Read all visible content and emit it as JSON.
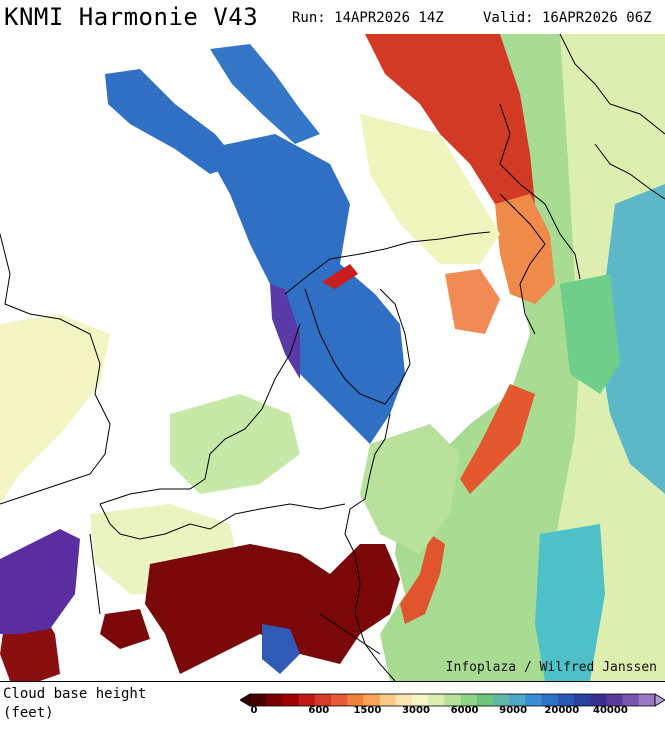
{
  "header": {
    "title": "KNMI Harmonie V43",
    "run": "Run: 14APR2026 14Z",
    "valid": "Valid: 16APR2026 06Z"
  },
  "map": {
    "credit": "Infoplaza / Wilfred Janssen"
  },
  "legend": {
    "param_line1": "Cloud base height",
    "param_line2": "(feet)",
    "colors": [
      "#4a0000",
      "#7a0000",
      "#a00000",
      "#c01818",
      "#d83a2a",
      "#e65a38",
      "#f0823e",
      "#f7a457",
      "#fbc98a",
      "#fde6b4",
      "#f4f6c4",
      "#dcefb0",
      "#b6e29a",
      "#8ed484",
      "#6ec47c",
      "#5fb9a8",
      "#4ea8c8",
      "#3c8ed4",
      "#2e72c6",
      "#2a58b6",
      "#28429e",
      "#3a2e92",
      "#5a3a9c",
      "#7a56b0",
      "#9a7ac4"
    ],
    "tick_labels": [
      {
        "label": "0",
        "index": 0
      },
      {
        "label": "600",
        "index": 4
      },
      {
        "label": "1500",
        "index": 7
      },
      {
        "label": "3000",
        "index": 10
      },
      {
        "label": "6000",
        "index": 13
      },
      {
        "label": "9000",
        "index": 16
      },
      {
        "label": "20000",
        "index": 19
      },
      {
        "label": "40000",
        "index": 22
      }
    ]
  }
}
